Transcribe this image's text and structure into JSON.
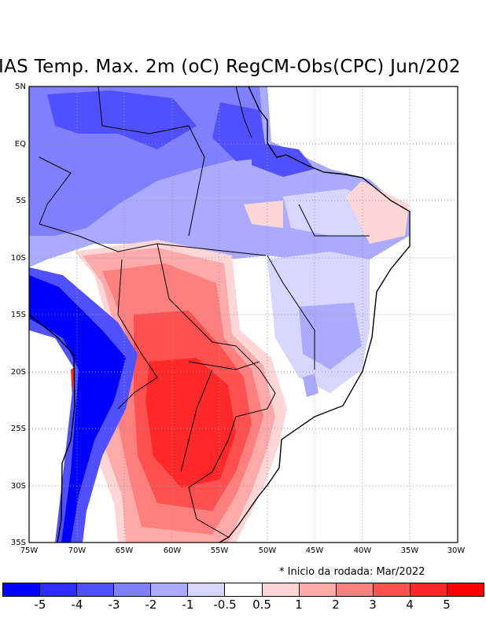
{
  "title": "IAS Temp. Max. 2m (oC) RegCM-Obs(CPC) Jun/202",
  "note": "* Inicio da rodada: Mar/2022",
  "axes": {
    "lon_labels": [
      "75W",
      "70W",
      "65W",
      "60W",
      "55W",
      "50W",
      "45W",
      "40W",
      "35W",
      "30W"
    ],
    "lat_labels": [
      "5N",
      "EQ",
      "5S",
      "10S",
      "15S",
      "20S",
      "25S",
      "30S",
      "35S"
    ]
  },
  "colorbar": {
    "colors": [
      "#0000ff",
      "#2d2dff",
      "#5050ff",
      "#7f7fff",
      "#aaaaff",
      "#d6d6ff",
      "#ffffff",
      "#ffd6d6",
      "#ffaaaa",
      "#ff7f7f",
      "#ff5050",
      "#ff2828",
      "#ff0000"
    ],
    "labels": [
      "-5",
      "-4",
      "-3",
      "-2",
      "-1",
      "-0.5",
      "0.5",
      "1",
      "2",
      "3",
      "4",
      "5"
    ]
  }
}
